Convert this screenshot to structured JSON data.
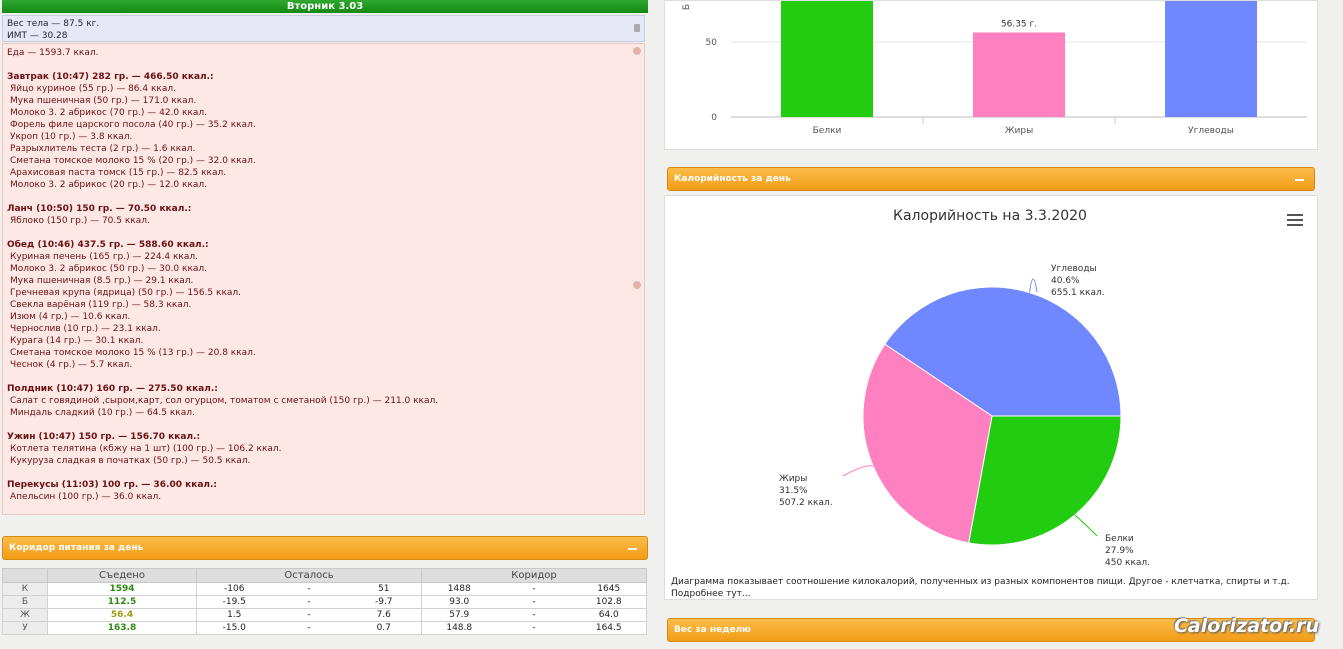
{
  "day": {
    "title": "Вторник 3.03"
  },
  "body": {
    "weight": "Вес тела — 87.5 кг.",
    "bmi": "ИМТ — 30.28"
  },
  "food_total": "Еда — 1593.7 ккал.",
  "meals": [
    {
      "title": "Завтрак (10:47) 282 гр. — 466.50 ккал.:",
      "items": [
        "Яйцо куриное (55 гр.) — 86.4 ккал.",
        "Мука пшеничная (50 гр.) — 171.0 ккал.",
        "Молоко 3. 2 абрикос (70 гр.) — 42.0 ккал.",
        "Форель филе царского посола (40 гр.) — 35.2 ккал.",
        "Укроп (10 гр.) — 3.8 ккал.",
        "Разрыхлитель теста (2 гр.) — 1.6 ккал.",
        "Сметана томское молоко 15 % (20 гр.) — 32.0 ккал.",
        "Арахисовая паста томск (15 гр.) — 82.5 ккал.",
        "Молоко 3. 2 абрикос (20 гр.) — 12.0 ккал."
      ]
    },
    {
      "title": "Ланч (10:50) 150 гр. — 70.50 ккал.:",
      "items": [
        "Яблоко (150 гр.) — 70.5 ккал."
      ]
    },
    {
      "title": "Обед (10:46) 437.5 гр. — 588.60 ккал.:",
      "items": [
        "Куриная печень (165 гр.) — 224.4 ккал.",
        "Молоко 3. 2 абрикос (50 гр.) — 30.0 ккал.",
        "Мука пшеничная (8.5 гр.) — 29.1 ккал.",
        "Гречневая крупа (ядрица) (50 гр.) — 156.5 ккал.",
        "Свекла варёная (119 гр.) — 58.3 ккал.",
        "Изюм (4 гр.) — 10.6 ккал.",
        "Чернослив (10 гр.) — 23.1 ккал.",
        "Курага (14 гр.) — 30.1 ккал.",
        "Сметана томское молоко 15 % (13 гр.) — 20.8 ккал.",
        "Чеснок (4 гр.) — 5.7 ккал."
      ]
    },
    {
      "title": "Полдник (10:47) 160 гр. — 275.50 ккал.:",
      "items": [
        "Салат с говядиной ,сыром,карт, сол огурцом, томатом с сметаной (150 гр.) — 211.0 ккал.",
        "Миндаль сладкий (10 гр.) — 64.5 ккал."
      ]
    },
    {
      "title": "Ужин (10:47) 150 гр. — 156.70 ккал.:",
      "items": [
        "Котлета телятина (кбжу на 1 шт) (100 гр.) — 106.2 ккал.",
        "Кукуруза сладкая в початках (50 гр.) — 50.5 ккал."
      ]
    },
    {
      "title": "Перекусы (11:03) 100 гр. — 36.00 ккал.:",
      "items": [
        "Апельсин (100 гр.) — 36.0 ккал."
      ]
    }
  ],
  "corridor": {
    "panel_title": "Коридор питания за день",
    "headers": [
      "Съедено",
      "Осталось",
      "Коридор"
    ],
    "rows": [
      {
        "label": "К",
        "eaten": "1594",
        "left_a": "-106",
        "left_b": "51",
        "cor_a": "1488",
        "cor_b": "1645"
      },
      {
        "label": "Б",
        "eaten": "112.5",
        "left_a": "-19.5",
        "left_b": "-9.7",
        "cor_a": "93.0",
        "cor_b": "102.8"
      },
      {
        "label": "Ж",
        "eaten": "56.4",
        "left_a": "1.5",
        "left_b": "7.6",
        "cor_a": "57.9",
        "cor_b": "64.0"
      },
      {
        "label": "У",
        "eaten": "163.8",
        "left_a": "-15.0",
        "left_b": "0.7",
        "cor_a": "148.8",
        "cor_b": "164.5"
      }
    ],
    "dash": "-"
  },
  "calorie_panel": {
    "title": "Калорийность за день"
  },
  "weight_panel": {
    "title": "Вес за неделю"
  },
  "watermark": "Calorizator.ru",
  "colors": {
    "protein": "#22cc11",
    "fat": "#ff80c0",
    "carbs": "#6f88ff",
    "accent": "#f5a623",
    "header_green": "#1c9a1c"
  },
  "chart_data": [
    {
      "type": "bar",
      "categories": [
        "Белки",
        "Жиры",
        "Углеводы"
      ],
      "values": [
        112.5,
        56.35,
        163.8
      ],
      "data_labels": [
        "",
        "56.35 г.",
        ""
      ],
      "yticks": [
        "0",
        "50"
      ],
      "ylabel": "Б",
      "colors": [
        "#22cc11",
        "#ff80c0",
        "#6f88ff"
      ]
    },
    {
      "type": "pie",
      "title": "Калорийность на 3.3.2020",
      "slices": [
        {
          "name": "Углеводы",
          "percent": 40.6,
          "percent_label": "40.6%",
          "kcal": "655.1 ккал.",
          "color": "#6f88ff"
        },
        {
          "name": "Белки",
          "percent": 27.9,
          "percent_label": "27.9%",
          "kcal": "450 ккал.",
          "color": "#22cc11"
        },
        {
          "name": "Жиры",
          "percent": 31.5,
          "percent_label": "31.5%",
          "kcal": "507.2 ккал.",
          "color": "#ff80c0"
        }
      ],
      "description": "Диаграмма показывает соотношение килокалорий, полученных из разных компонентов пищи. Другое - клетчатка, спирты и т.д.",
      "more_link": "Подробнее тут..."
    }
  ]
}
